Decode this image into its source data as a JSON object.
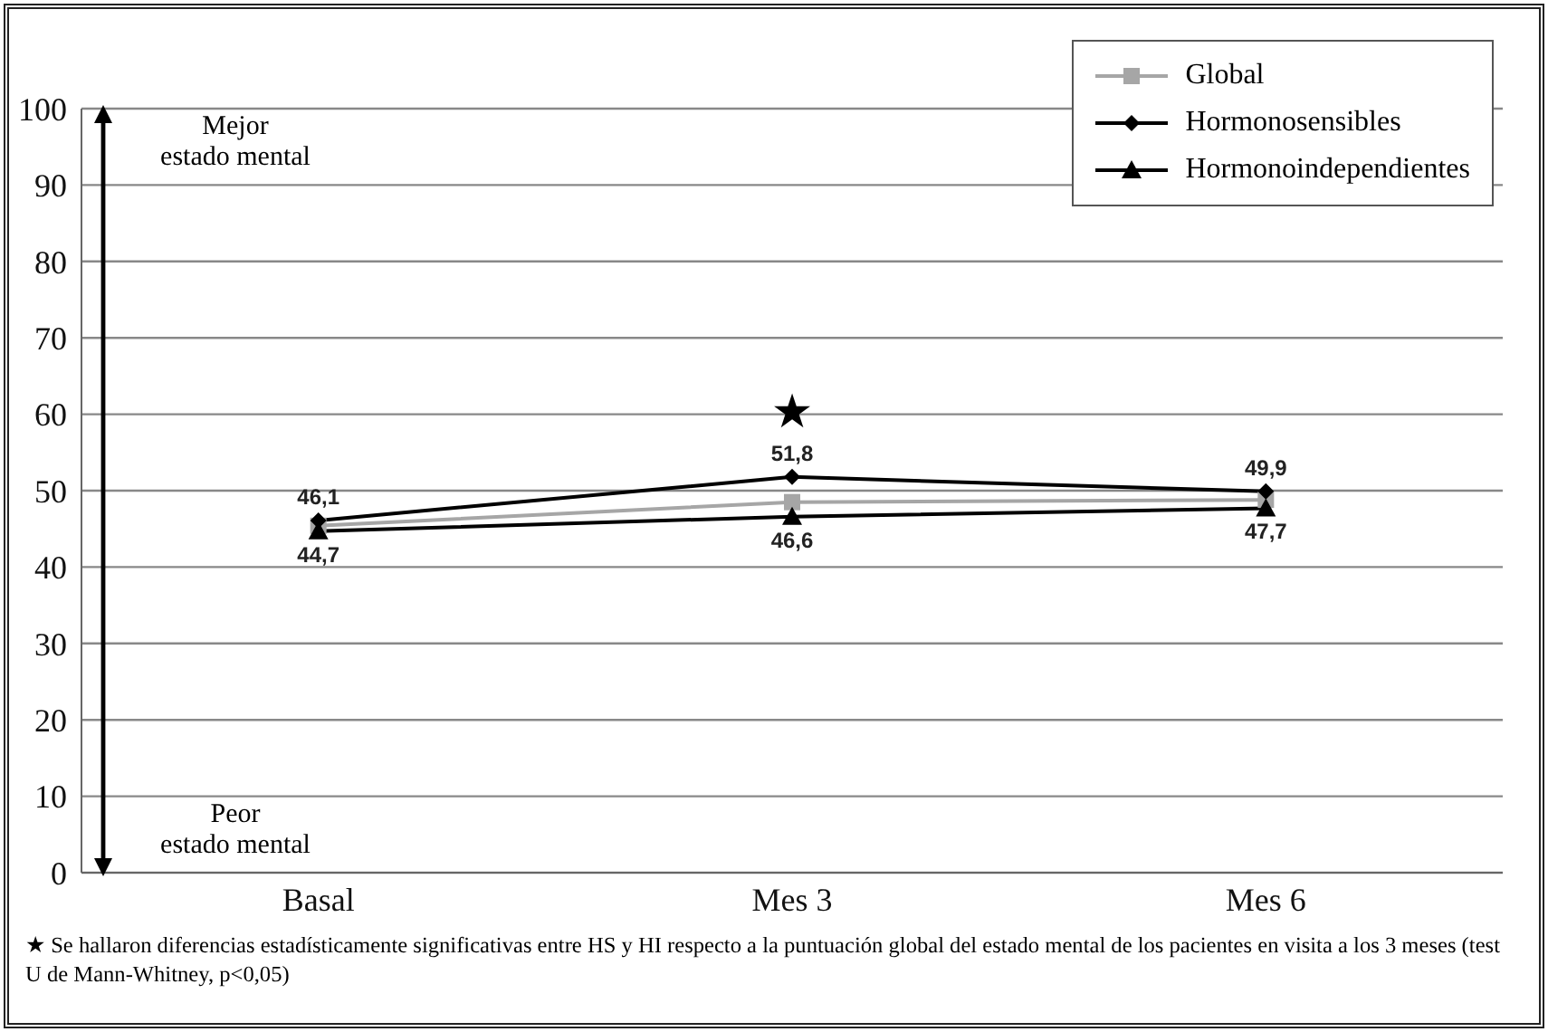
{
  "chart_data": {
    "type": "line",
    "categories": [
      "Basal",
      "Mes 3",
      "Mes 6"
    ],
    "series": [
      {
        "name": "Global",
        "color": "#a6a6a6",
        "marker": "square",
        "values": [
          45.4,
          48.5,
          48.8
        ]
      },
      {
        "name": "Hormonosensibles",
        "color": "#000000",
        "marker": "diamond",
        "values": [
          46.1,
          51.8,
          49.9
        ],
        "value_labels": [
          "46,1",
          "51,8",
          "49,9"
        ]
      },
      {
        "name": "Hormonoindependientes",
        "color": "#000000",
        "marker": "triangle",
        "values": [
          44.7,
          46.6,
          47.7
        ],
        "value_labels": [
          "44,7",
          "46,6",
          "47,7"
        ]
      }
    ],
    "ylim": [
      0,
      100
    ],
    "yticks": [
      0,
      10,
      20,
      30,
      40,
      50,
      60,
      70,
      80,
      90,
      100
    ],
    "grid": "y",
    "legend": "top right",
    "annotations": [
      "Mejor\nestado mental",
      "Peor\nestado mental",
      "★",
      "★ Se hallaron diferencias estadísticamente significativas entre HS y HI respecto a la puntuación global del estado mental de los pacientes en visita a los 3 meses (test U de Mann-Whitney, p<0,05)"
    ]
  }
}
